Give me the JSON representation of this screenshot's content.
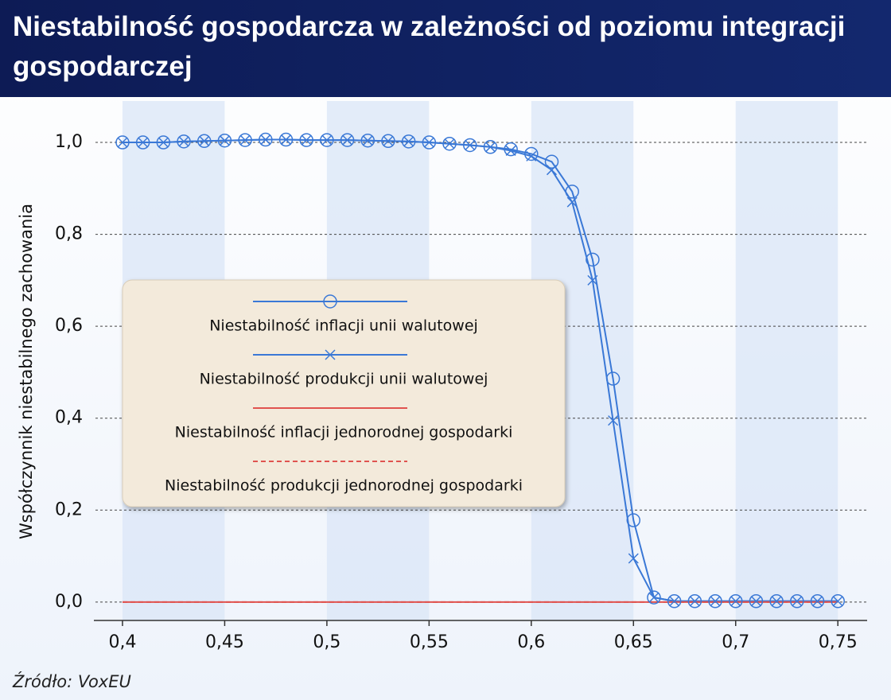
{
  "chart_data": {
    "type": "line",
    "title": "Niestabilność gospodarcza w zależności od poziomu integracji gospodarczej",
    "y_label": "Współczynnik niestabilnego zachowania",
    "source": "Źródło: VoxEU",
    "x": [
      0.4,
      0.41,
      0.42,
      0.43,
      0.44,
      0.45,
      0.46,
      0.47,
      0.48,
      0.49,
      0.5,
      0.51,
      0.52,
      0.53,
      0.54,
      0.55,
      0.56,
      0.57,
      0.58,
      0.59,
      0.6,
      0.61,
      0.62,
      0.63,
      0.64,
      0.65,
      0.66,
      0.67,
      0.68,
      0.69,
      0.7,
      0.71,
      0.72,
      0.73,
      0.74,
      0.75
    ],
    "series": [
      {
        "name": "Niestabilność inflacji unii walutowej",
        "color": "#3a78d6",
        "marker": "circle",
        "line_style": "solid",
        "values": [
          1.0,
          1.0,
          1.0,
          1.002,
          1.003,
          1.004,
          1.005,
          1.006,
          1.006,
          1.005,
          1.005,
          1.005,
          1.004,
          1.003,
          1.002,
          1.0,
          0.997,
          0.994,
          0.99,
          0.985,
          0.975,
          0.958,
          0.893,
          0.745,
          0.486,
          0.178,
          0.01,
          0.002,
          0.002,
          0.002,
          0.002,
          0.002,
          0.002,
          0.002,
          0.002,
          0.002
        ]
      },
      {
        "name": "Niestabilność produkcji unii walutowej",
        "color": "#3a78d6",
        "marker": "cross",
        "line_style": "solid",
        "values": [
          1.0,
          1.0,
          1.0,
          1.002,
          1.003,
          1.004,
          1.005,
          1.006,
          1.006,
          1.005,
          1.005,
          1.005,
          1.004,
          1.003,
          1.002,
          1.0,
          0.997,
          0.994,
          0.99,
          0.982,
          0.97,
          0.94,
          0.87,
          0.7,
          0.395,
          0.095,
          0.01,
          0.002,
          0.002,
          0.002,
          0.002,
          0.002,
          0.002,
          0.002,
          0.002,
          0.002
        ]
      },
      {
        "name": "Niestabilność inflacji jednorodnej gospodarki",
        "color": "#e0534f",
        "marker": "none",
        "line_style": "solid",
        "values": [
          0,
          0,
          0,
          0,
          0,
          0,
          0,
          0,
          0,
          0,
          0,
          0,
          0,
          0,
          0,
          0,
          0,
          0,
          0,
          0,
          0,
          0,
          0,
          0,
          0,
          0,
          0,
          0,
          0,
          0,
          0,
          0,
          0,
          0,
          0,
          0
        ]
      },
      {
        "name": "Niestabilność produkcji jednorodnej gospodarki",
        "color": "#e0534f",
        "marker": "none",
        "line_style": "dashed",
        "values": [
          0,
          0,
          0,
          0,
          0,
          0,
          0,
          0,
          0,
          0,
          0,
          0,
          0,
          0,
          0,
          0,
          0,
          0,
          0,
          0,
          0,
          0,
          0,
          0,
          0,
          0,
          0,
          0,
          0,
          0,
          0,
          0,
          0,
          0,
          0,
          0
        ]
      }
    ],
    "xlim": [
      0.386,
      0.776
    ],
    "ylim": [
      -0.04,
      1.09
    ],
    "xticks": [
      {
        "value": 0.4,
        "label": "0,4"
      },
      {
        "value": 0.45,
        "label": "0,45"
      },
      {
        "value": 0.5,
        "label": "0,5"
      },
      {
        "value": 0.55,
        "label": "0,55"
      },
      {
        "value": 0.6,
        "label": "0,6"
      },
      {
        "value": 0.65,
        "label": "0,65"
      },
      {
        "value": 0.7,
        "label": "0,7"
      },
      {
        "value": 0.75,
        "label": "0,75"
      }
    ],
    "yticks": [
      {
        "value": 0,
        "label": "0,0"
      },
      {
        "value": 0.2,
        "label": "0,2"
      },
      {
        "value": 0.4,
        "label": "0,4"
      },
      {
        "value": 0.6,
        "label": "0,6"
      },
      {
        "value": 0.8,
        "label": "0,8"
      },
      {
        "value": 1.0,
        "label": "1,0"
      }
    ],
    "grid": true
  }
}
